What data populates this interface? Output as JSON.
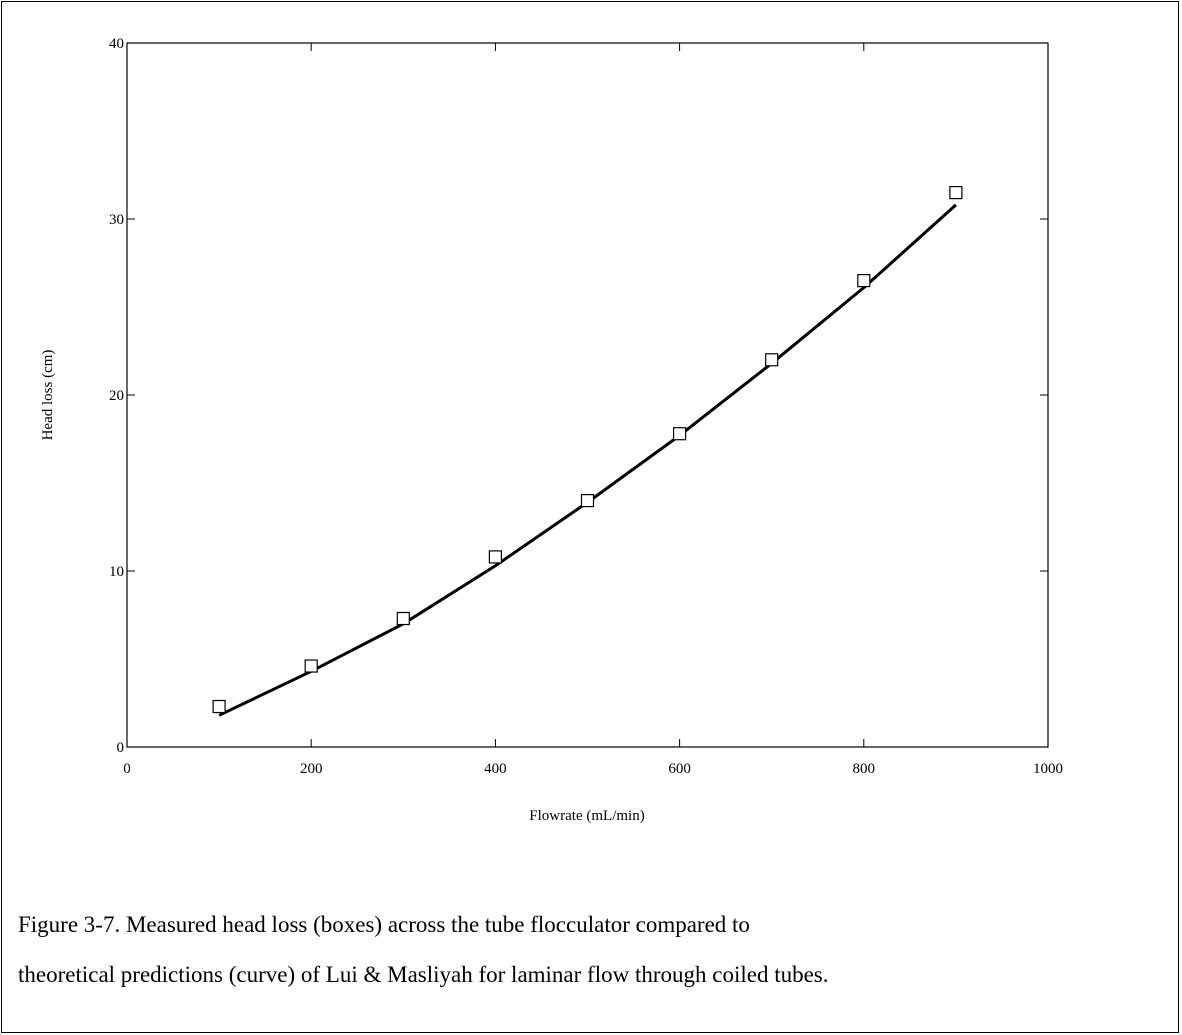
{
  "chart_data": {
    "type": "line",
    "title": "",
    "xlabel": "Flowrate (mL/min)",
    "ylabel": "Head loss (cm)",
    "xlim": [
      0,
      1000
    ],
    "ylim": [
      0,
      40
    ],
    "x_ticks": [
      "0",
      "200",
      "400",
      "600",
      "800",
      "1000"
    ],
    "y_ticks": [
      "0",
      "10",
      "20",
      "30",
      "40"
    ],
    "grid": false,
    "legend": "none",
    "series": [
      {
        "style": "markers-open-square",
        "x": [
          100,
          200,
          300,
          400,
          500,
          600,
          700,
          800,
          900
        ],
        "y": [
          2.3,
          4.6,
          7.3,
          10.8,
          14.0,
          17.8,
          22.0,
          26.5,
          31.5
        ]
      },
      {
        "style": "solid-line",
        "x": [
          100,
          200,
          300,
          400,
          500,
          600,
          700,
          800,
          900
        ],
        "y": [
          1.8,
          4.3,
          7.0,
          10.3,
          13.9,
          17.7,
          21.8,
          26.1,
          30.8
        ]
      }
    ]
  },
  "caption": {
    "line1": "Figure 3-7. Measured head loss (boxes) across the tube flocculator compared to",
    "line2": "theoretical predictions (curve) of Lui & Masliyah for laminar flow through coiled tubes."
  }
}
